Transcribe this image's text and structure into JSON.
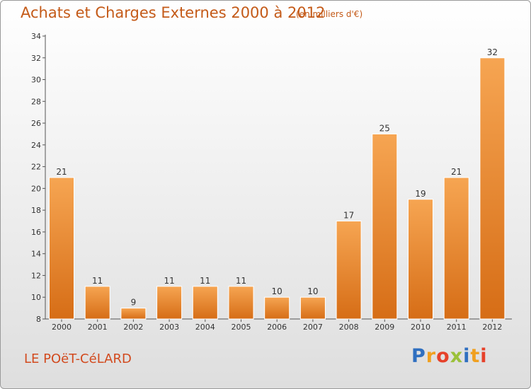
{
  "chart_data": {
    "type": "bar",
    "title": "Achats et Charges Externes 2000 à 2012",
    "subtitle": "(en milliers d'€)",
    "categories": [
      "2000",
      "2001",
      "2002",
      "2003",
      "2004",
      "2005",
      "2006",
      "2007",
      "2008",
      "2009",
      "2010",
      "2011",
      "2012"
    ],
    "values": [
      21,
      11,
      9,
      11,
      11,
      11,
      10,
      10,
      17,
      25,
      19,
      21,
      32
    ],
    "ylim": [
      8,
      34
    ],
    "yticks": [
      8,
      10,
      12,
      14,
      16,
      18,
      20,
      22,
      24,
      26,
      28,
      30,
      32,
      34
    ],
    "grid": false,
    "bar_color": "#ef8c30"
  },
  "commune": "LE POëT-CéLARD",
  "logo": {
    "text": "Proxiti",
    "letters": [
      {
        "ch": "P",
        "color": "#2f6fc0"
      },
      {
        "ch": "r",
        "color": "#f0a020"
      },
      {
        "ch": "o",
        "color": "#e6412a"
      },
      {
        "ch": "x",
        "color": "#9bc13a"
      },
      {
        "ch": "i",
        "color": "#2f6fc0"
      },
      {
        "ch": "t",
        "color": "#f0a020"
      },
      {
        "ch": "i",
        "color": "#e6412a"
      }
    ]
  }
}
